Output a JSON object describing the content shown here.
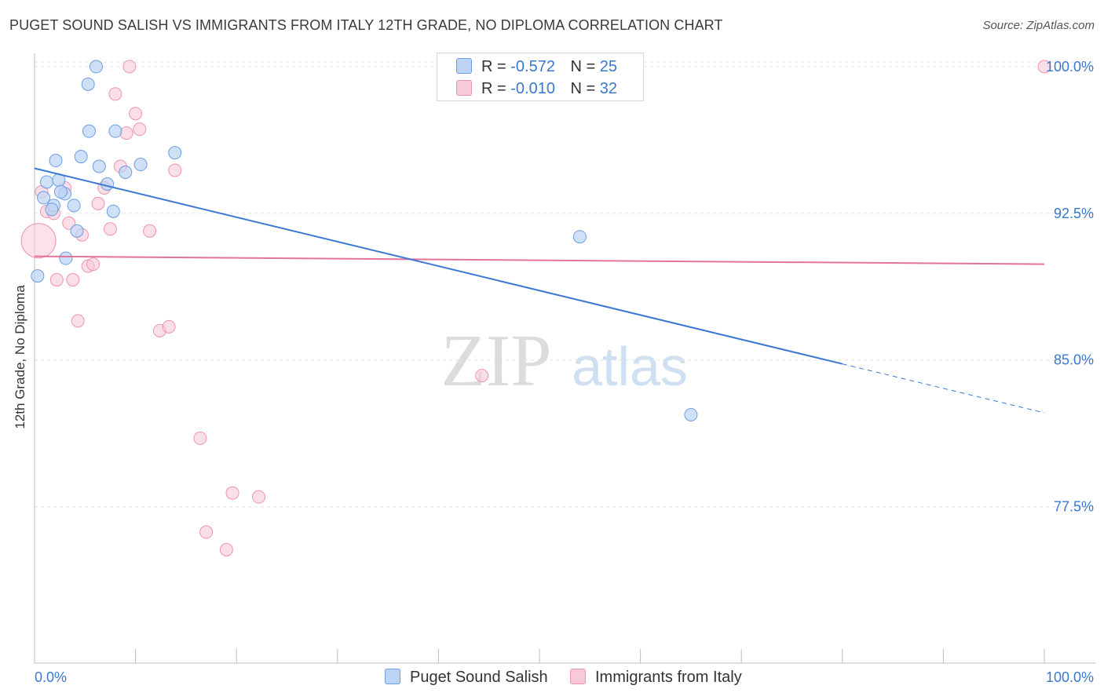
{
  "title": "PUGET SOUND SALISH VS IMMIGRANTS FROM ITALY 12TH GRADE, NO DIPLOMA CORRELATION CHART",
  "source": "Source: ZipAtlas.com",
  "watermark": {
    "zip": "ZIP",
    "atlas": "atlas"
  },
  "legend": {
    "series1": {
      "r_label": "R =",
      "r_value": "-0.572",
      "n_label": "N =",
      "n_value": "25"
    },
    "series2": {
      "r_label": "R =",
      "r_value": "-0.010",
      "n_label": "N =",
      "n_value": "32"
    }
  },
  "colors": {
    "blue_fill": "#bcd4f3",
    "blue_stroke": "#6b9ee0",
    "blue_line": "#3a78d3",
    "pink_fill": "#f8c9d7",
    "pink_stroke": "#ec93b0",
    "pink_line": "#e4729a",
    "axis_text": "#3b78cc",
    "grid": "#e2e2e2"
  },
  "chart_data": {
    "type": "scatter",
    "title": "PUGET SOUND SALISH VS IMMIGRANTS FROM ITALY 12TH GRADE, NO DIPLOMA CORRELATION CHART",
    "xlabel": "",
    "ylabel": "12th Grade, No Diploma",
    "xlim": [
      0,
      100
    ],
    "ylim": [
      69.5,
      101.0
    ],
    "x_tick_labels": [
      "0.0%",
      "100.0%"
    ],
    "y_ticks": [
      77.5,
      85.0,
      92.5,
      100.0
    ],
    "y_tick_labels": [
      "77.5%",
      "85.0%",
      "92.5%",
      "100.0%"
    ],
    "series": [
      {
        "name": "Puget Sound Salish",
        "points": [
          {
            "x": 0.3,
            "y": 89.3
          },
          {
            "x": 0.9,
            "y": 93.3
          },
          {
            "x": 1.2,
            "y": 94.1
          },
          {
            "x": 1.9,
            "y": 92.9
          },
          {
            "x": 2.1,
            "y": 95.2
          },
          {
            "x": 2.4,
            "y": 94.2
          },
          {
            "x": 3.0,
            "y": 93.5
          },
          {
            "x": 3.1,
            "y": 90.2
          },
          {
            "x": 3.9,
            "y": 92.9
          },
          {
            "x": 4.2,
            "y": 91.6
          },
          {
            "x": 4.6,
            "y": 95.4
          },
          {
            "x": 5.3,
            "y": 99.1
          },
          {
            "x": 5.4,
            "y": 96.7
          },
          {
            "x": 6.1,
            "y": 100.0
          },
          {
            "x": 6.4,
            "y": 94.9
          },
          {
            "x": 7.2,
            "y": 94.0
          },
          {
            "x": 7.8,
            "y": 92.6
          },
          {
            "x": 8.0,
            "y": 96.7
          },
          {
            "x": 9.0,
            "y": 94.6
          },
          {
            "x": 10.5,
            "y": 95.0
          },
          {
            "x": 13.9,
            "y": 95.6
          },
          {
            "x": 1.7,
            "y": 92.7
          },
          {
            "x": 2.6,
            "y": 93.6
          },
          {
            "x": 54.0,
            "y": 91.3
          },
          {
            "x": 65.0,
            "y": 82.2
          }
        ],
        "trend": {
          "x0": 0,
          "y0": 94.8,
          "x1": 80,
          "y1": 84.8,
          "dash_to_x": 100,
          "dash_to_y": 82.3
        }
      },
      {
        "name": "Immigrants from Italy",
        "points": [
          {
            "x": 0.4,
            "y": 91.1
          },
          {
            "x": 0.7,
            "y": 93.6
          },
          {
            "x": 1.2,
            "y": 92.6
          },
          {
            "x": 1.9,
            "y": 92.5
          },
          {
            "x": 2.2,
            "y": 89.1
          },
          {
            "x": 3.0,
            "y": 93.8
          },
          {
            "x": 3.4,
            "y": 92.0
          },
          {
            "x": 3.8,
            "y": 89.1
          },
          {
            "x": 4.3,
            "y": 87.0
          },
          {
            "x": 4.7,
            "y": 91.4
          },
          {
            "x": 5.3,
            "y": 89.8
          },
          {
            "x": 5.8,
            "y": 89.9
          },
          {
            "x": 6.3,
            "y": 93.0
          },
          {
            "x": 6.9,
            "y": 93.8
          },
          {
            "x": 7.5,
            "y": 91.7
          },
          {
            "x": 8.0,
            "y": 98.6
          },
          {
            "x": 8.5,
            "y": 94.9
          },
          {
            "x": 9.1,
            "y": 96.6
          },
          {
            "x": 9.4,
            "y": 100.0
          },
          {
            "x": 10.0,
            "y": 97.6
          },
          {
            "x": 10.4,
            "y": 96.8
          },
          {
            "x": 11.4,
            "y": 91.6
          },
          {
            "x": 12.4,
            "y": 86.5
          },
          {
            "x": 13.3,
            "y": 86.7
          },
          {
            "x": 13.9,
            "y": 94.7
          },
          {
            "x": 16.4,
            "y": 81.0
          },
          {
            "x": 17.0,
            "y": 76.2
          },
          {
            "x": 19.0,
            "y": 75.3
          },
          {
            "x": 19.6,
            "y": 78.2
          },
          {
            "x": 22.2,
            "y": 78.0
          },
          {
            "x": 44.3,
            "y": 84.2
          },
          {
            "x": 100.0,
            "y": 100.0
          }
        ],
        "trend": {
          "x0": 0,
          "y0": 90.3,
          "x1": 100,
          "y1": 89.9
        }
      }
    ]
  }
}
